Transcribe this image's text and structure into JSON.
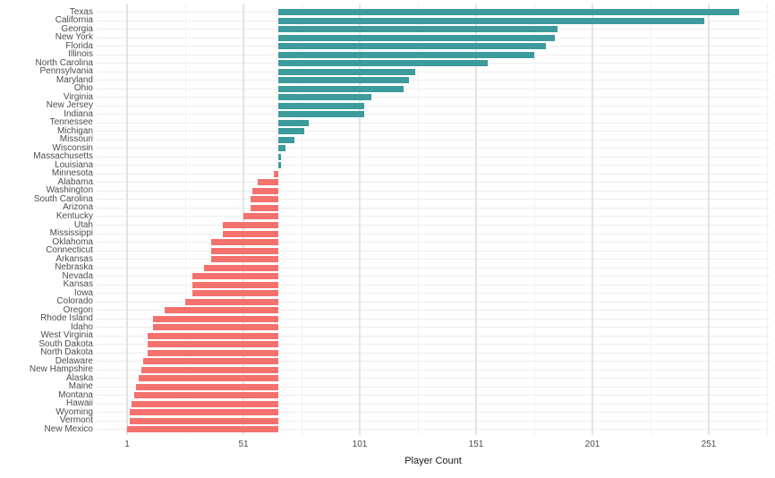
{
  "chart_data": {
    "type": "bar",
    "variant": "diverging-horizontal",
    "title": "",
    "xlabel": "Player Count",
    "ylabel": "",
    "baseline": 66,
    "categories": [
      "Texas",
      "California",
      "Georgia",
      "New York",
      "Florida",
      "Illinois",
      "North Carolina",
      "Pennsylvania",
      "Maryland",
      "Ohio",
      "Virginia",
      "New Jersey",
      "Indiana",
      "Tennessee",
      "Michigan",
      "Missouri",
      "Wisconsin",
      "Massachusetts",
      "Louisiana",
      "Minnesota",
      "Alabama",
      "Washington",
      "South Carolina",
      "Arizona",
      "Kentucky",
      "Utah",
      "Mississippi",
      "Oklahoma",
      "Connecticut",
      "Arkansas",
      "Nebraska",
      "Nevada",
      "Kansas",
      "Iowa",
      "Colorado",
      "Oregon",
      "Rhode Island",
      "Idaho",
      "West Virginia",
      "South Dakota",
      "North Dakota",
      "Delaware",
      "New Hampshire",
      "Alaska",
      "Maine",
      "Montana",
      "Hawaii",
      "Wyoming",
      "Vermont",
      "New Mexico"
    ],
    "values": [
      264,
      249,
      186,
      185,
      181,
      176,
      156,
      125,
      122,
      120,
      106,
      103,
      103,
      79,
      77,
      73,
      69,
      67,
      67,
      64,
      57,
      55,
      54,
      54,
      51,
      42,
      42,
      37,
      37,
      37,
      34,
      29,
      29,
      29,
      26,
      17,
      12,
      12,
      10,
      10,
      10,
      8,
      7,
      6,
      5,
      4,
      3,
      2,
      2,
      1
    ],
    "x_ticks": [
      1,
      51,
      101,
      151,
      201,
      251
    ],
    "x_minor_ticks": [
      26,
      76,
      126,
      176,
      226,
      276
    ],
    "xlim": [
      -12,
      277
    ],
    "legend": "none",
    "grid": "major+minor",
    "colors": {
      "above_baseline": "#3D9B9B",
      "below_baseline": "#F4716D"
    }
  },
  "theme": {
    "background": "#ffffff",
    "grid_major": "#e4e4e4",
    "grid_minor": "#f1f1f1",
    "grid_horizontal": "#ededed",
    "axis_text": "#4d4d4d",
    "axis_title": "#1a1a1a"
  }
}
